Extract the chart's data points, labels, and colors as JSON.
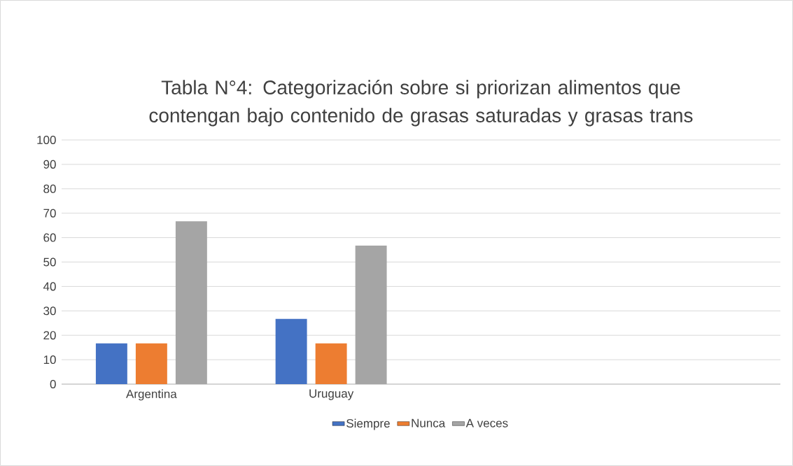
{
  "chart_data": {
    "type": "bar",
    "title": "Tabla N°4: Categorización sobre si priorizan alimentos que contengan bajo contenido de grasas saturadas y grasas trans",
    "categories": [
      "Argentina",
      "Uruguay",
      null,
      null
    ],
    "series": [
      {
        "name": "Siempre",
        "color": "#4472c4",
        "values": [
          16.7,
          26.7,
          null,
          null
        ]
      },
      {
        "name": "Nunca",
        "color": "#ed7d31",
        "values": [
          16.7,
          16.7,
          null,
          null
        ]
      },
      {
        "name": "A veces",
        "color": "#a5a5a5",
        "values": [
          66.7,
          56.7,
          null,
          null
        ]
      }
    ],
    "ylim": [
      0,
      100
    ],
    "yticks": [
      0,
      10,
      20,
      30,
      40,
      50,
      60,
      70,
      80,
      90,
      100
    ],
    "grid": "y",
    "legend": "bottom"
  }
}
